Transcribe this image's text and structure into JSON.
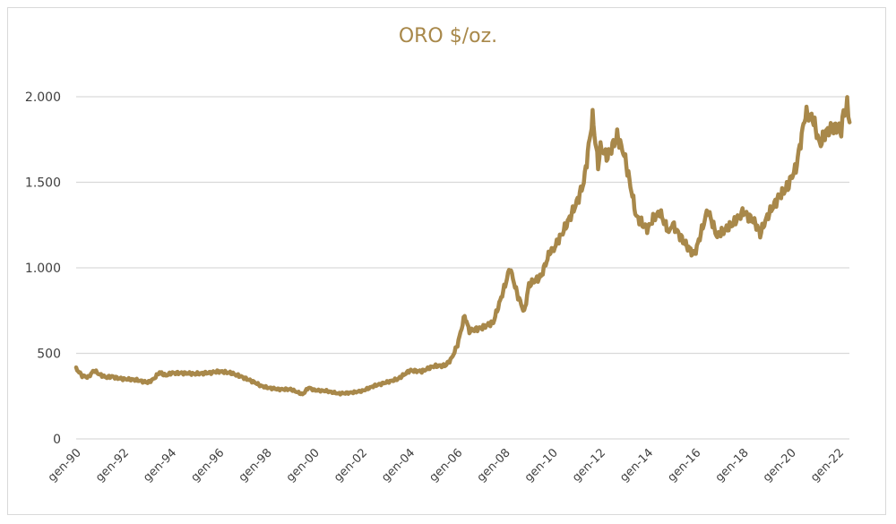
{
  "chart_data": {
    "type": "line",
    "title": "ORO $/oz.",
    "xlabel": "",
    "ylabel": "",
    "ylim": [
      0,
      2000
    ],
    "yticks": [
      0,
      500,
      1000,
      1500,
      2000
    ],
    "ytick_labels": [
      "0",
      "500",
      "1.000",
      "1.500",
      "2.000"
    ],
    "xlim": [
      1990.0,
      2022.45
    ],
    "xticks": [
      1990,
      1992,
      1994,
      1996,
      1998,
      2000,
      2002,
      2004,
      2006,
      2008,
      2010,
      2012,
      2014,
      2016,
      2018,
      2020,
      2022
    ],
    "xtick_labels": [
      "gen-90",
      "gen-92",
      "gen-94",
      "gen-96",
      "gen-98",
      "gen-00",
      "gen-02",
      "gen-04",
      "gen-06",
      "gen-08",
      "gen-10",
      "gen-12",
      "gen-14",
      "gen-16",
      "gen-18",
      "gen-20",
      "gen-22"
    ],
    "grid": true,
    "legend": "none",
    "line_color": "#a8884a",
    "series": [
      {
        "name": "ORO $/oz.",
        "x": [
          1990.0,
          1990.25,
          1990.5,
          1990.75,
          1991.0,
          1991.25,
          1991.5,
          1991.75,
          1992.0,
          1992.5,
          1993.0,
          1993.25,
          1993.5,
          1993.75,
          1994.0,
          1994.5,
          1995.0,
          1995.5,
          1996.0,
          1996.25,
          1996.5,
          1997.0,
          1997.5,
          1997.75,
          1998.0,
          1998.5,
          1999.0,
          1999.5,
          1999.75,
          2000.0,
          2000.5,
          2001.0,
          2001.5,
          2002.0,
          2002.5,
          2003.0,
          2003.5,
          2004.0,
          2004.5,
          2005.0,
          2005.5,
          2005.75,
          2006.0,
          2006.3,
          2006.5,
          2007.0,
          2007.5,
          2008.0,
          2008.2,
          2008.5,
          2008.8,
          2009.0,
          2009.5,
          2009.9,
          2010.0,
          2010.5,
          2011.0,
          2011.3,
          2011.67,
          2011.9,
          2012.0,
          2012.3,
          2012.7,
          2013.0,
          2013.3,
          2013.5,
          2013.8,
          2014.0,
          2014.25,
          2014.5,
          2014.9,
          2015.0,
          2015.5,
          2015.9,
          2016.0,
          2016.5,
          2016.9,
          2017.0,
          2017.5,
          2018.0,
          2018.5,
          2018.7,
          2019.0,
          2019.5,
          2019.9,
          2020.0,
          2020.2,
          2020.6,
          2020.9,
          2021.2,
          2021.5,
          2021.9,
          2022.1,
          2022.2,
          2022.35,
          2022.45
        ],
        "values": [
          410,
          370,
          360,
          400,
          375,
          360,
          365,
          355,
          350,
          345,
          330,
          350,
          390,
          370,
          385,
          385,
          380,
          385,
          395,
          390,
          385,
          360,
          330,
          310,
          300,
          290,
          290,
          260,
          300,
          285,
          280,
          265,
          270,
          280,
          310,
          330,
          350,
          400,
          395,
          425,
          430,
          470,
          550,
          720,
          630,
          650,
          680,
          900,
          1000,
          850,
          740,
          900,
          950,
          1100,
          1100,
          1230,
          1380,
          1500,
          1880,
          1600,
          1700,
          1650,
          1770,
          1660,
          1450,
          1300,
          1250,
          1230,
          1300,
          1320,
          1200,
          1260,
          1150,
          1080,
          1100,
          1340,
          1180,
          1200,
          1250,
          1330,
          1260,
          1200,
          1300,
          1420,
          1480,
          1530,
          1580,
          1900,
          1880,
          1720,
          1800,
          1820,
          1800,
          1900,
          1950,
          1850
        ]
      }
    ]
  }
}
